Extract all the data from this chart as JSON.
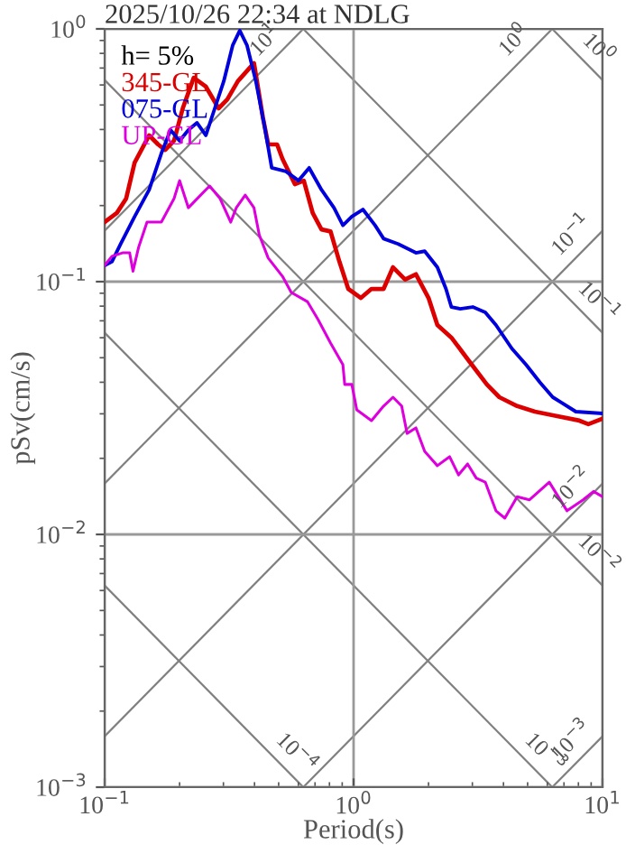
{
  "chart_data": {
    "type": "line",
    "title": "2025/10/26 22:34 at NDLG",
    "xlabel": "Period(s)",
    "ylabel": "pSv(cm/s)",
    "legend_title": "h= 5%",
    "log": "xy",
    "grid": true,
    "legend": "top left",
    "xlim": [
      0.1,
      10
    ],
    "ylim": [
      0.001,
      1
    ],
    "xticks": [
      {
        "value": 0.1,
        "label": "10$^{−1}$"
      },
      {
        "value": 1,
        "label": "10$^{0}$"
      },
      {
        "value": 10,
        "label": "10$^{1}$"
      }
    ],
    "yticks": [
      {
        "value": 0.001,
        "label": "10$^{−3}$"
      },
      {
        "value": 0.01,
        "label": "10$^{−2}$"
      },
      {
        "value": 0.1,
        "label": "10$^{−1}$"
      },
      {
        "value": 1,
        "label": "10$^{0}$"
      }
    ],
    "series": [
      {
        "name": "345-GL",
        "color": "#dd0000",
        "x": [
          0.1,
          0.112,
          0.122,
          0.132,
          0.151,
          0.164,
          0.175,
          0.19,
          0.206,
          0.228,
          0.255,
          0.287,
          0.311,
          0.343,
          0.398,
          0.432,
          0.454,
          0.493,
          0.518,
          0.581,
          0.631,
          0.685,
          0.743,
          0.808,
          0.877,
          0.952,
          1.07,
          1.18,
          1.32,
          1.44,
          1.61,
          1.78,
          2.0,
          2.17,
          2.47,
          2.91,
          3.43,
          3.85,
          4.54,
          5.35,
          6.31,
          8.07,
          8.77,
          10
        ],
        "values": [
          0.172,
          0.187,
          0.213,
          0.296,
          0.379,
          0.349,
          0.332,
          0.361,
          0.485,
          0.641,
          0.591,
          0.485,
          0.526,
          0.621,
          0.732,
          0.447,
          0.349,
          0.349,
          0.306,
          0.243,
          0.251,
          0.187,
          0.161,
          0.158,
          0.12,
          0.0936,
          0.0862,
          0.0936,
          0.0936,
          0.114,
          0.102,
          0.107,
          0.0862,
          0.0674,
          0.0601,
          0.0485,
          0.0392,
          0.0349,
          0.0322,
          0.0306,
          0.0296,
          0.0282,
          0.0273,
          0.0287
        ]
      },
      {
        "name": "075-GL",
        "color": "#0000dd",
        "x": [
          0.1,
          0.107,
          0.116,
          0.132,
          0.151,
          0.169,
          0.184,
          0.2,
          0.217,
          0.235,
          0.255,
          0.277,
          0.301,
          0.327,
          0.349,
          0.373,
          0.405,
          0.439,
          0.469,
          0.535,
          0.601,
          0.663,
          0.743,
          0.834,
          0.906,
          0.984,
          1.09,
          1.22,
          1.32,
          1.51,
          1.78,
          1.93,
          2.17,
          2.35,
          2.47,
          2.68,
          3.01,
          3.38,
          3.73,
          4.32,
          4.93,
          5.62,
          6.31,
          6.85,
          7.81,
          10
        ],
        "values": [
          0.116,
          0.12,
          0.141,
          0.181,
          0.231,
          0.322,
          0.398,
          0.361,
          0.398,
          0.425,
          0.379,
          0.485,
          0.621,
          0.862,
          0.984,
          0.862,
          0.621,
          0.411,
          0.282,
          0.273,
          0.251,
          0.282,
          0.231,
          0.196,
          0.167,
          0.181,
          0.193,
          0.167,
          0.148,
          0.141,
          0.13,
          0.132,
          0.114,
          0.0936,
          0.0794,
          0.0781,
          0.0794,
          0.0756,
          0.0674,
          0.0544,
          0.0469,
          0.0398,
          0.0349,
          0.0332,
          0.0306,
          0.0301
        ]
      },
      {
        "name": "UP-GL",
        "color": "#dd00dd",
        "x": [
          0.1,
          0.107,
          0.118,
          0.126,
          0.13,
          0.137,
          0.148,
          0.169,
          0.19,
          0.2,
          0.217,
          0.243,
          0.264,
          0.291,
          0.321,
          0.338,
          0.367,
          0.398,
          0.418,
          0.454,
          0.518,
          0.562,
          0.652,
          0.72,
          0.808,
          0.906,
          0.921,
          0.984,
          1.03,
          1.18,
          1.32,
          1.44,
          1.56,
          1.64,
          1.78,
          1.93,
          2.17,
          2.43,
          2.64,
          2.87,
          3.11,
          3.38,
          3.73,
          4.05,
          4.54,
          5.09,
          6.11,
          7.2,
          8.35,
          9.2,
          10
        ],
        "values": [
          0.116,
          0.126,
          0.13,
          0.13,
          0.11,
          0.137,
          0.172,
          0.172,
          0.213,
          0.251,
          0.196,
          0.22,
          0.239,
          0.213,
          0.172,
          0.196,
          0.22,
          0.196,
          0.153,
          0.124,
          0.105,
          0.0906,
          0.0834,
          0.0708,
          0.0572,
          0.0469,
          0.0392,
          0.0392,
          0.0311,
          0.0282,
          0.0322,
          0.0349,
          0.0322,
          0.0251,
          0.0264,
          0.0213,
          0.0187,
          0.0203,
          0.0172,
          0.019,
          0.0167,
          0.0161,
          0.0124,
          0.0116,
          0.0141,
          0.0137,
          0.0161,
          0.0124,
          0.0137,
          0.0148,
          0.0141
        ]
      },
      {
        "color": "#808080",
        "x": [
          0.1,
          0.628
        ],
        "values": [
          0.159,
          1
        ]
      },
      {
        "color": "#808080",
        "x": [
          0.1,
          6.28
        ],
        "values": [
          0.0159,
          1
        ]
      },
      {
        "color": "#808080",
        "x": [
          0.1,
          10
        ],
        "values": [
          0.00159,
          0.159
        ]
      },
      {
        "color": "#808080",
        "x": [
          0.628,
          10
        ],
        "values": [
          0.001,
          0.0159
        ]
      },
      {
        "color": "#808080",
        "x": [
          6.28,
          10
        ],
        "values": [
          0.001,
          0.00159
        ]
      },
      {
        "color": "#808080",
        "x": [
          6.28,
          10
        ],
        "values": [
          1,
          0.628
        ]
      },
      {
        "color": "#808080",
        "x": [
          0.628,
          10
        ],
        "values": [
          1,
          0.0628
        ]
      },
      {
        "color": "#808080",
        "x": [
          0.1,
          10
        ],
        "values": [
          0.628,
          0.00628
        ]
      },
      {
        "color": "#808080",
        "x": [
          0.1,
          6.28
        ],
        "values": [
          0.0628,
          0.001
        ]
      },
      {
        "color": "#808080",
        "x": [
          0.1,
          0.628
        ],
        "values": [
          0.00628,
          0.001
        ]
      }
    ],
    "annotations": [
      {
        "text": "10$^{1}$",
        "x": 0.5,
        "y": 0.796
      },
      {
        "text": "10$^{0}$",
        "x": 5,
        "y": 0.796
      },
      {
        "text": "10$^{0}$",
        "x": 8.5,
        "y": 0.739
      },
      {
        "text": "10$^{−1}$",
        "x": 8.5,
        "y": 0.135
      },
      {
        "text": "10$^{−1}$",
        "x": 8.5,
        "y": 0.0739
      },
      {
        "text": "10$^{−2}$",
        "x": 8.5,
        "y": 0.0135
      },
      {
        "text": "10$^{−2}$",
        "x": 8.5,
        "y": 0.00739
      },
      {
        "text": "10$^{−3}$",
        "x": 8.5,
        "y": 0.00135
      },
      {
        "text": "10$^{−3}$",
        "x": 5.2,
        "y": 0.00121
      },
      {
        "text": "10$^{−4}$",
        "x": 0.52,
        "y": 0.00121
      }
    ]
  }
}
